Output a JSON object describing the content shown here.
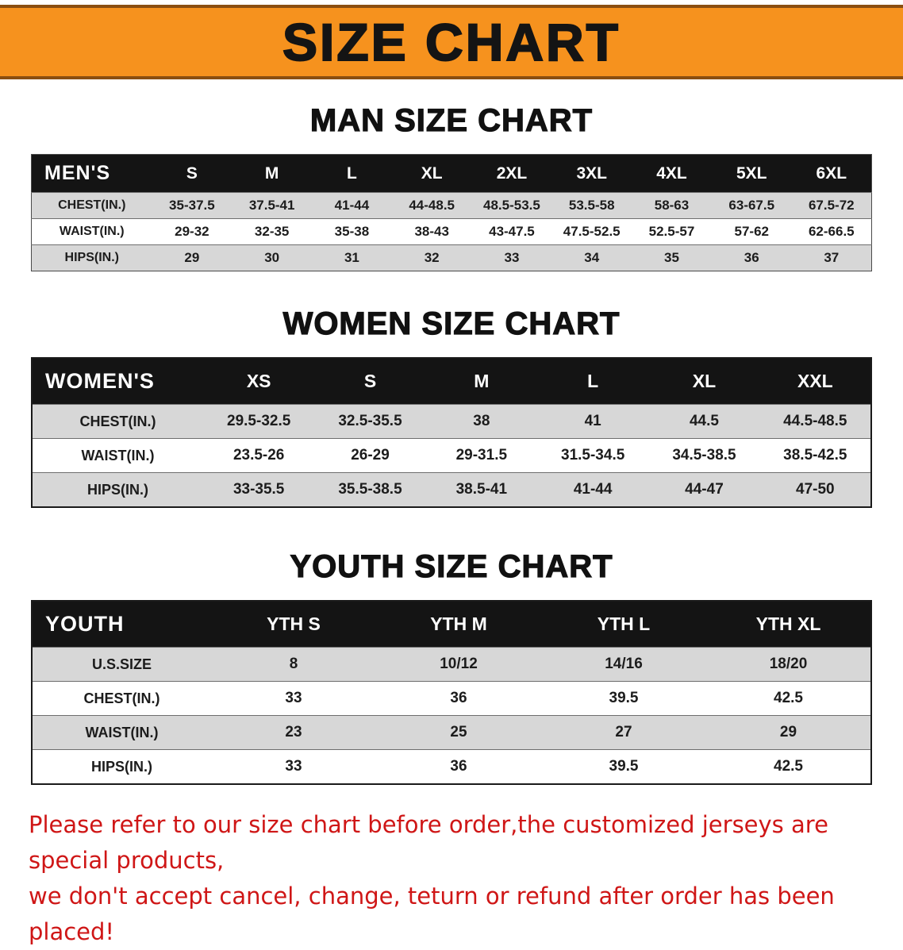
{
  "banner": {
    "title": "SIZE CHART"
  },
  "colors": {
    "banner_bg": "#f6921e",
    "table_header_bg": "#141414",
    "shaded_row": "#d7d7d7",
    "footer_text": "#cf1616"
  },
  "sections": [
    {
      "heading": "MAN SIZE CHART",
      "table": {
        "label": "MEN'S",
        "columns": [
          "S",
          "M",
          "L",
          "XL",
          "2XL",
          "3XL",
          "4XL",
          "5XL",
          "6XL"
        ],
        "rows": [
          {
            "label": "CHEST(IN.)",
            "values": [
              "35-37.5",
              "37.5-41",
              "41-44",
              "44-48.5",
              "48.5-53.5",
              "53.5-58",
              "58-63",
              "63-67.5",
              "67.5-72"
            ]
          },
          {
            "label": "WAIST(IN.)",
            "values": [
              "29-32",
              "32-35",
              "35-38",
              "38-43",
              "43-47.5",
              "47.5-52.5",
              "52.5-57",
              "57-62",
              "62-66.5"
            ]
          },
          {
            "label": "HIPS(IN.)",
            "values": [
              "29",
              "30",
              "31",
              "32",
              "33",
              "34",
              "35",
              "36",
              "37"
            ]
          }
        ]
      }
    },
    {
      "heading": "WOMEN SIZE CHART",
      "table": {
        "label": "WOMEN'S",
        "columns": [
          "XS",
          "S",
          "M",
          "L",
          "XL",
          "XXL"
        ],
        "rows": [
          {
            "label": "CHEST(IN.)",
            "values": [
              "29.5-32.5",
              "32.5-35.5",
              "38",
              "41",
              "44.5",
              "44.5-48.5"
            ]
          },
          {
            "label": "WAIST(IN.)",
            "values": [
              "23.5-26",
              "26-29",
              "29-31.5",
              "31.5-34.5",
              "34.5-38.5",
              "38.5-42.5"
            ]
          },
          {
            "label": "HIPS(IN.)",
            "values": [
              "33-35.5",
              "35.5-38.5",
              "38.5-41",
              "41-44",
              "44-47",
              "47-50"
            ]
          }
        ]
      }
    },
    {
      "heading": "YOUTH SIZE CHART",
      "table": {
        "label": "YOUTH",
        "columns": [
          "YTH S",
          "YTH M",
          "YTH L",
          "YTH XL"
        ],
        "rows": [
          {
            "label": "U.S.SIZE",
            "values": [
              "8",
              "10/12",
              "14/16",
              "18/20"
            ]
          },
          {
            "label": "CHEST(IN.)",
            "values": [
              "33",
              "36",
              "39.5",
              "42.5"
            ]
          },
          {
            "label": "WAIST(IN.)",
            "values": [
              "23",
              "25",
              "27",
              "29"
            ]
          },
          {
            "label": "HIPS(IN.)",
            "values": [
              "33",
              "36",
              "39.5",
              "42.5"
            ]
          }
        ]
      }
    }
  ],
  "footer": {
    "line1": "Please refer to our size chart before order,the customized jerseys are special products,",
    "line2": "we don't accept cancel, change, teturn or refund after order has been placed!"
  }
}
